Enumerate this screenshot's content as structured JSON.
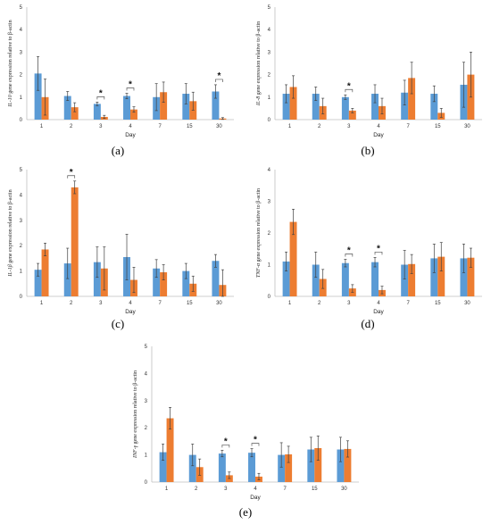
{
  "colors": {
    "series1": "#5b9bd5",
    "series2": "#ed7d31"
  },
  "chart_data": [
    {
      "panel": "(a)",
      "type": "bar",
      "xlabel": "Day",
      "ylabel_gene": "IL-10",
      "ylabel_rest": " gene expression relative to β-actin",
      "ylim": [
        0,
        5
      ],
      "yticks": [
        0,
        1,
        2,
        3,
        4,
        5
      ],
      "categories": [
        "1",
        "2",
        "3",
        "4",
        "7",
        "15",
        "30"
      ],
      "series": [
        {
          "values": [
            2.05,
            1.05,
            0.7,
            1.05,
            1.0,
            1.15,
            1.25
          ],
          "errors": [
            0.75,
            0.2,
            0.08,
            0.12,
            0.6,
            0.45,
            0.3
          ]
        },
        {
          "values": [
            1.0,
            0.55,
            0.12,
            0.45,
            1.22,
            0.82,
            0.05
          ],
          "errors": [
            0.8,
            0.2,
            0.07,
            0.12,
            0.45,
            0.4,
            0.04
          ]
        }
      ],
      "significance": [
        "3",
        "4",
        "30"
      ]
    },
    {
      "panel": "(b)",
      "type": "bar",
      "xlabel": "Day",
      "ylabel_gene": "IL-8",
      "ylabel_rest": " gene expression relative to β-actin",
      "ylim": [
        0,
        5
      ],
      "yticks": [
        0,
        1,
        2,
        3,
        4,
        5
      ],
      "categories": [
        "1",
        "2",
        "3",
        "4",
        "7",
        "15",
        "30"
      ],
      "series": [
        {
          "values": [
            1.15,
            1.15,
            1.0,
            1.15,
            1.2,
            1.15,
            1.55
          ],
          "errors": [
            0.4,
            0.3,
            0.1,
            0.4,
            0.55,
            0.35,
            1.0
          ]
        },
        {
          "values": [
            1.45,
            0.6,
            0.4,
            0.6,
            1.85,
            0.3,
            2.0
          ],
          "errors": [
            0.5,
            0.35,
            0.1,
            0.35,
            0.7,
            0.2,
            1.0
          ]
        }
      ],
      "significance": [
        "3"
      ]
    },
    {
      "panel": "(c)",
      "type": "bar",
      "xlabel": "Day",
      "ylabel_gene": "IL-1β",
      "ylabel_rest": " gene expression relative to β-actin",
      "ylim": [
        0,
        5
      ],
      "yticks": [
        0,
        1,
        2,
        3,
        4,
        5
      ],
      "categories": [
        "1",
        "2",
        "3",
        "4",
        "7",
        "15",
        "30"
      ],
      "series": [
        {
          "values": [
            1.05,
            1.3,
            1.35,
            1.55,
            1.1,
            1.0,
            1.4
          ],
          "errors": [
            0.25,
            0.6,
            0.6,
            0.9,
            0.35,
            0.3,
            0.25
          ]
        },
        {
          "values": [
            1.85,
            4.3,
            1.1,
            0.65,
            0.95,
            0.5,
            0.45
          ],
          "errors": [
            0.25,
            0.25,
            0.85,
            0.5,
            0.3,
            0.3,
            0.6
          ]
        }
      ],
      "significance": [
        "2"
      ]
    },
    {
      "panel": "(d)",
      "type": "bar",
      "xlabel": "Day",
      "ylabel_gene": "TNF-α",
      "ylabel_rest": " gene expression relative to β-actin",
      "ylim": [
        0,
        4
      ],
      "yticks": [
        0,
        1,
        2,
        3,
        4
      ],
      "categories": [
        "1",
        "2",
        "3",
        "4",
        "7",
        "15",
        "30"
      ],
      "series": [
        {
          "values": [
            1.1,
            1.0,
            1.05,
            1.08,
            1.0,
            1.2,
            1.2
          ],
          "errors": [
            0.3,
            0.4,
            0.12,
            0.15,
            0.45,
            0.45,
            0.45
          ]
        },
        {
          "values": [
            2.35,
            0.55,
            0.25,
            0.2,
            1.02,
            1.25,
            1.22
          ],
          "errors": [
            0.4,
            0.3,
            0.12,
            0.12,
            0.3,
            0.45,
            0.3
          ]
        }
      ],
      "significance": [
        "3",
        "4"
      ]
    },
    {
      "panel": "(e)",
      "type": "bar",
      "xlabel": "Day",
      "ylabel_gene": "INF-γ",
      "ylabel_rest": " gene expression relative to β-actin",
      "ylim": [
        0,
        5
      ],
      "yticks": [
        0,
        1,
        2,
        3,
        4,
        5
      ],
      "categories": [
        "1",
        "2",
        "3",
        "4",
        "7",
        "15",
        "30"
      ],
      "series": [
        {
          "values": [
            1.1,
            1.0,
            1.05,
            1.08,
            1.0,
            1.2,
            1.2
          ],
          "errors": [
            0.3,
            0.4,
            0.12,
            0.15,
            0.45,
            0.45,
            0.45
          ]
        },
        {
          "values": [
            2.35,
            0.55,
            0.25,
            0.2,
            1.02,
            1.25,
            1.22
          ],
          "errors": [
            0.4,
            0.3,
            0.12,
            0.12,
            0.3,
            0.45,
            0.3
          ]
        }
      ],
      "significance": [
        "3",
        "4"
      ]
    }
  ]
}
